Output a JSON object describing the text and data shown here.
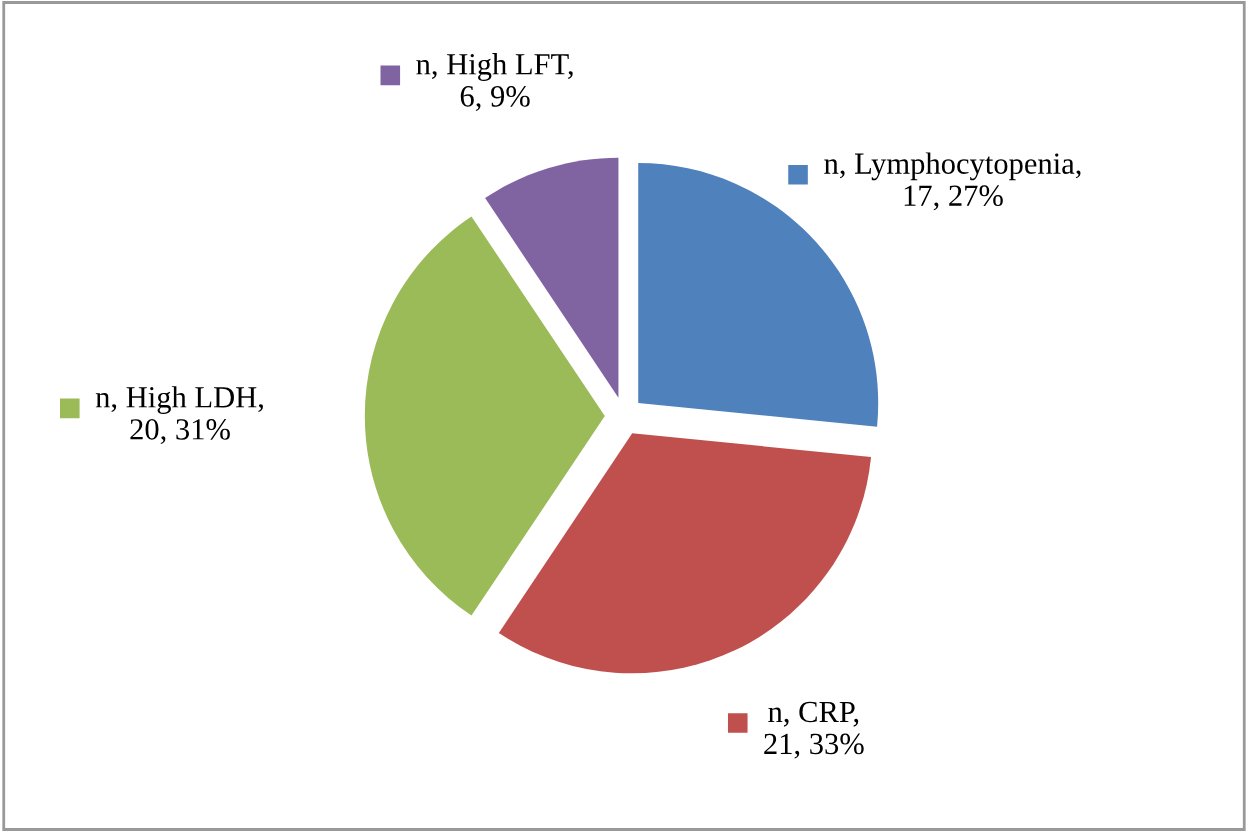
{
  "chart_data": {
    "type": "pie",
    "categories": [
      null,
      null,
      null,
      null
    ],
    "values": [
      17,
      21,
      20,
      6
    ],
    "value_labels": [
      "n, Lymphocytopenia, 17, 27%",
      "n, CRP, 21, 33%",
      "n, High LDH, 20, 31%",
      "n, High LFT, 6, 9%"
    ],
    "colors": [
      "#4f81bd",
      "#c0504d",
      "#9bbb59",
      "#8064a2"
    ]
  }
}
